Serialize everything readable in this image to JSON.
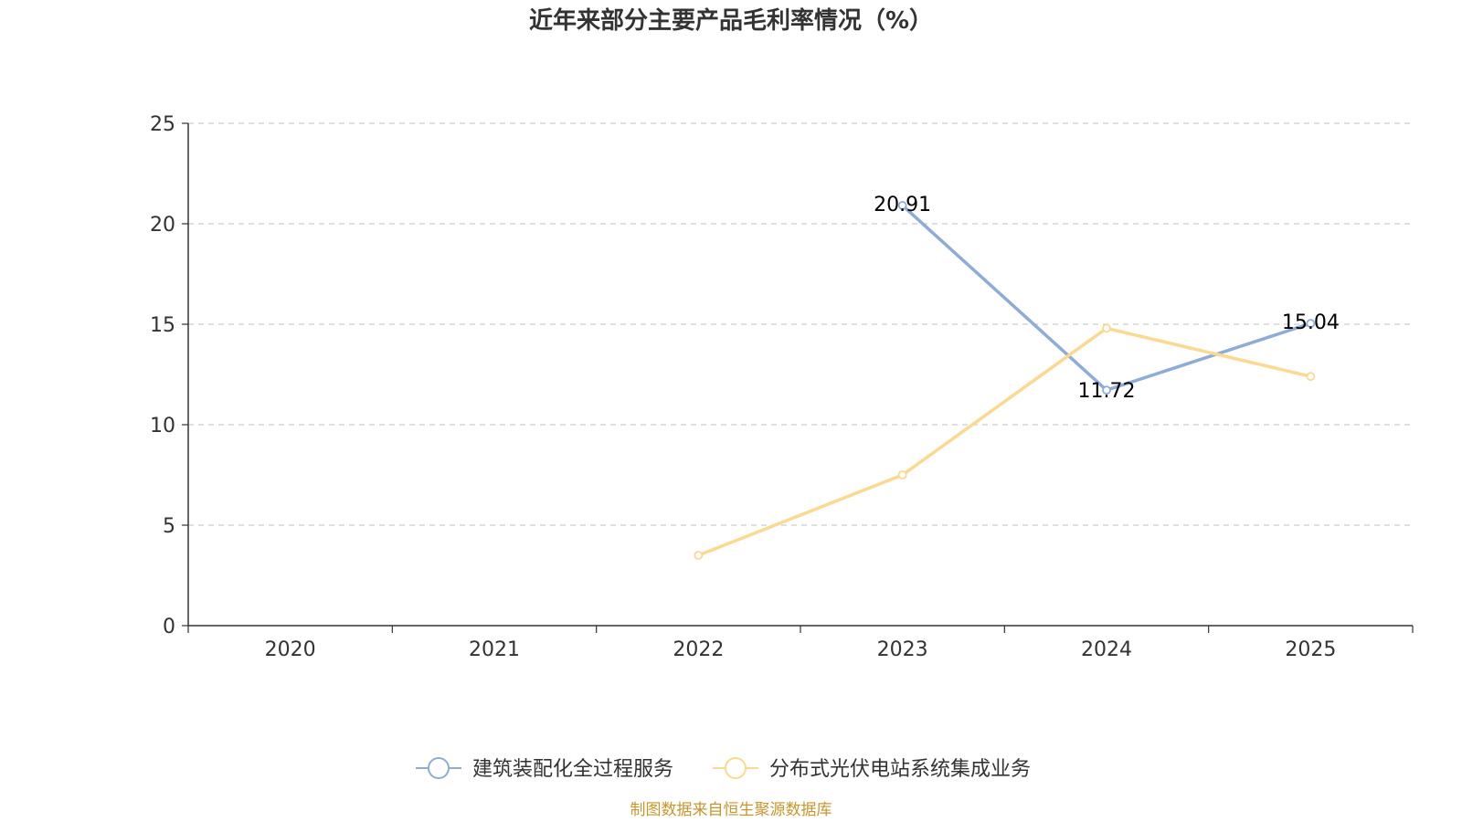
{
  "chart_data": {
    "type": "line",
    "title": "近年来部分主要产品毛利率情况（%）",
    "categories": [
      "2020",
      "2021",
      "2022",
      "2023",
      "2024",
      "2025"
    ],
    "ylim": [
      0,
      25
    ],
    "yticks": [
      0,
      5,
      10,
      15,
      20,
      25
    ],
    "xlabel": "",
    "ylabel": "",
    "grid": true,
    "legend_position": "bottom",
    "series": [
      {
        "name": "建筑装配化全过程服务",
        "color": "#8eacd8",
        "values": [
          null,
          null,
          null,
          20.91,
          11.72,
          15.04
        ],
        "show_labels": true
      },
      {
        "name": "分布式光伏电站系统集成业务",
        "color": "#fbd98f",
        "values": [
          null,
          null,
          3.5,
          7.5,
          14.8,
          12.4
        ],
        "show_labels": false
      }
    ],
    "source": "制图数据来自恒生聚源数据库",
    "source_color": "#c9962a"
  }
}
